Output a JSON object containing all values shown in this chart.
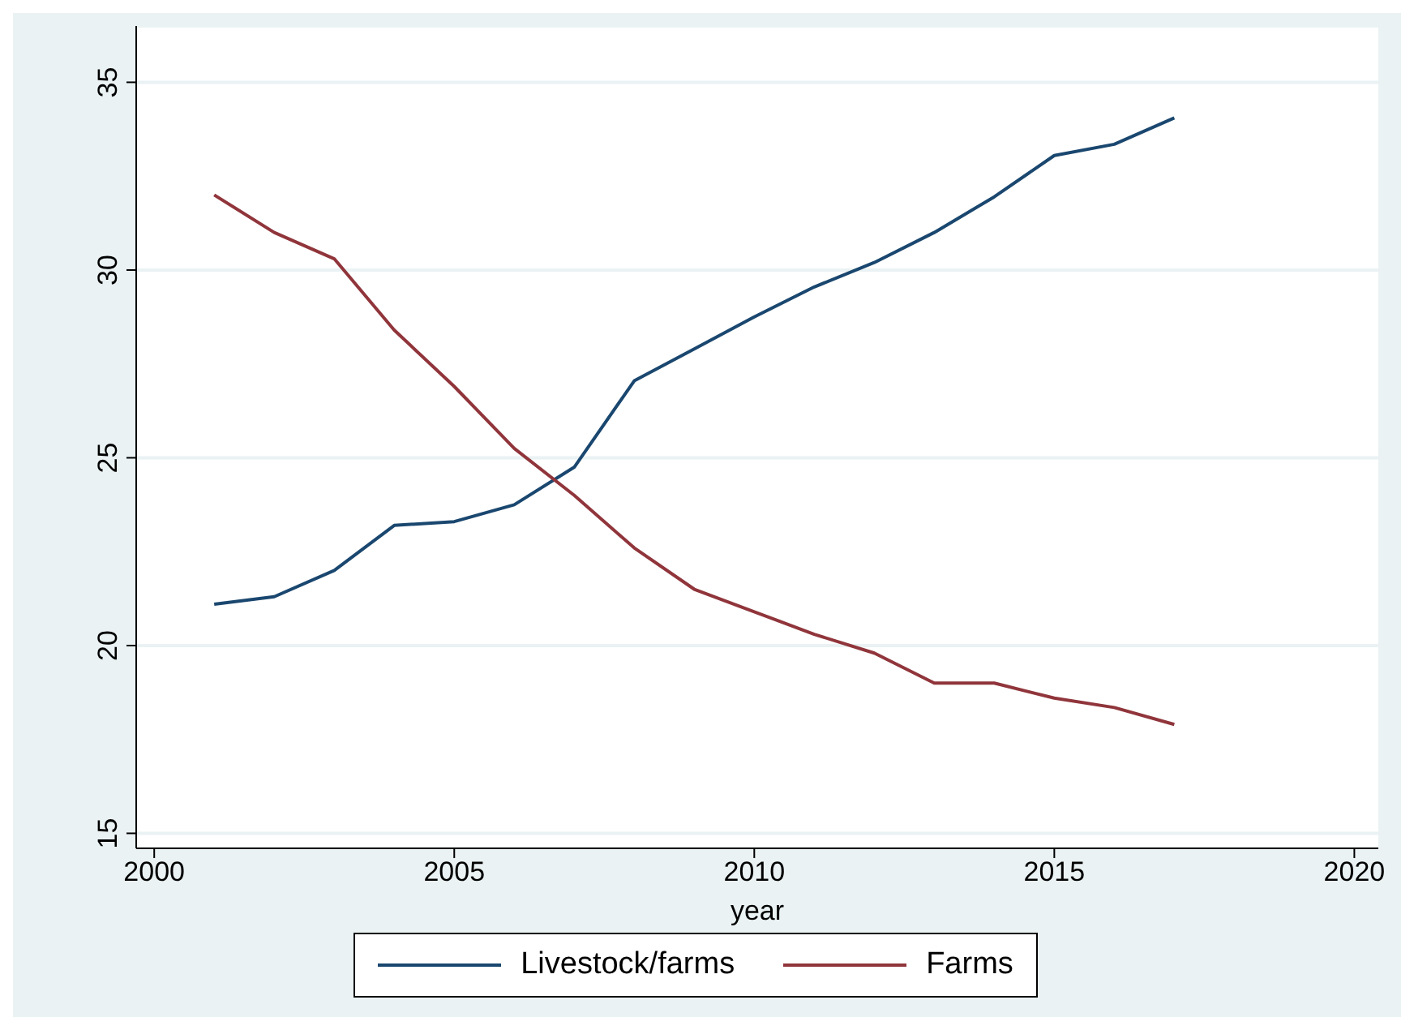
{
  "chart_data": {
    "type": "line",
    "xlabel": "year",
    "x": [
      2001,
      2002,
      2003,
      2004,
      2005,
      2006,
      2007,
      2008,
      2009,
      2010,
      2011,
      2012,
      2013,
      2014,
      2015,
      2016,
      2017
    ],
    "series": [
      {
        "name": "Livestock/farms",
        "color": "#1a476f",
        "values": [
          21.1,
          21.3,
          22.0,
          23.2,
          23.3,
          23.75,
          24.75,
          27.05,
          27.9,
          28.75,
          29.55,
          30.2,
          31.0,
          31.95,
          33.05,
          33.35,
          34.05
        ]
      },
      {
        "name": "Farms",
        "color": "#90353b",
        "values": [
          32.0,
          31.0,
          30.3,
          28.4,
          26.9,
          25.25,
          24.0,
          22.6,
          21.5,
          20.9,
          20.3,
          19.8,
          19.0,
          19.0,
          18.6,
          18.35,
          17.9
        ]
      }
    ],
    "xlim": [
      1999.7,
      2020.4
    ],
    "xticks": [
      2000,
      2005,
      2010,
      2015,
      2020
    ],
    "ylim": [
      14.6,
      36.5
    ],
    "yticks": [
      15,
      20,
      25,
      30,
      35
    ],
    "grid": "y",
    "legend": "bottom",
    "marker": "none",
    "line_style": "solid"
  }
}
